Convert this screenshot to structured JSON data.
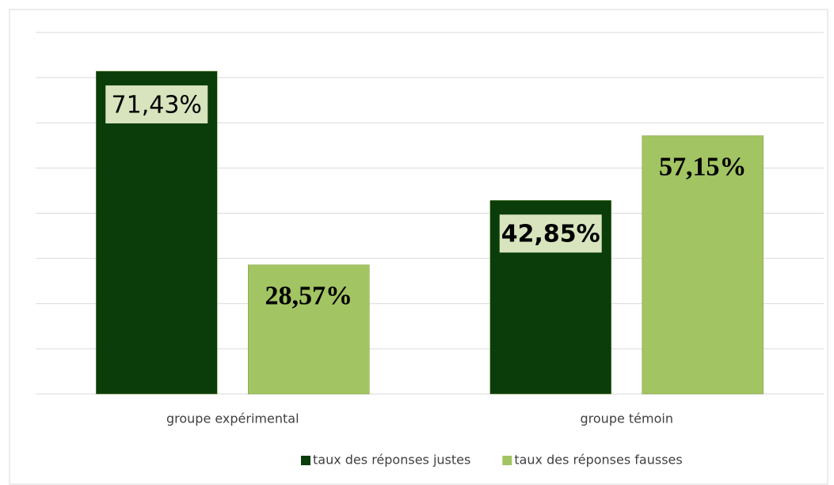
{
  "chart_data": {
    "type": "bar",
    "categories": [
      "groupe expérimental",
      "groupe témoin"
    ],
    "series": [
      {
        "name": "taux des réponses justes",
        "color": "#0b3d0b",
        "values": [
          71.43,
          42.85
        ],
        "value_labels": [
          "71,43%",
          "42,85%"
        ]
      },
      {
        "name": "taux des réponses fausses",
        "color": "#a3c462",
        "values": [
          28.57,
          57.15
        ],
        "value_labels": [
          "28,57%",
          "57,15%"
        ]
      }
    ],
    "ylim": [
      0,
      80
    ],
    "yticks": [
      0,
      10,
      20,
      30,
      40,
      50,
      60,
      70,
      80
    ],
    "grid": true,
    "legend": "bottom"
  }
}
